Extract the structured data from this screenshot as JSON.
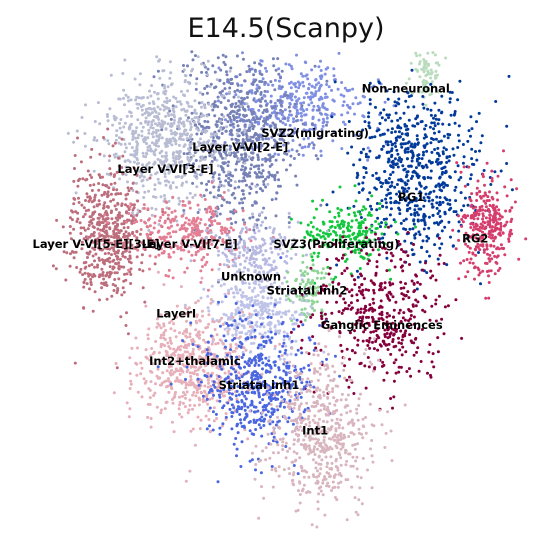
{
  "chart_data": {
    "type": "scatter",
    "title": "E14.5(Scanpy)",
    "xlabel": "",
    "ylabel": "",
    "grid": false,
    "axes_visible": false,
    "legend": "on data",
    "clusters": [
      {
        "label": "Non-neuronal",
        "color": "#b9dcbd",
        "cx": 0.8,
        "cy": 0.14,
        "sx": 0.012,
        "sy": 0.025,
        "n": 80
      },
      {
        "label": "SVZ2(migrating)",
        "color": "#7f8fe3",
        "cx": 0.56,
        "cy": 0.19,
        "sx": 0.07,
        "sy": 0.04,
        "n": 380
      },
      {
        "label": "Layer V-VI[2-E]",
        "color": "#7681b6",
        "cx": 0.45,
        "cy": 0.24,
        "sx": 0.055,
        "sy": 0.08,
        "n": 720
      },
      {
        "label": "Layer V-VI[3-E]",
        "color": "#b9bdd4",
        "cx": 0.31,
        "cy": 0.25,
        "sx": 0.06,
        "sy": 0.06,
        "n": 660
      },
      {
        "label": "RG1",
        "color": "#023a9b",
        "cx": 0.78,
        "cy": 0.31,
        "sx": 0.055,
        "sy": 0.075,
        "n": 660
      },
      {
        "label": "RG2",
        "color": "#d53d6d",
        "cx": 0.91,
        "cy": 0.41,
        "sx": 0.025,
        "sy": 0.045,
        "n": 290
      },
      {
        "label": "Layer V-VI[5-E][3-E]",
        "color": "#bd6d7c",
        "cx": 0.2,
        "cy": 0.42,
        "sx": 0.035,
        "sy": 0.065,
        "n": 540
      },
      {
        "label": "Layer V-VI[7-E]",
        "color": "#e37f94",
        "cx": 0.35,
        "cy": 0.42,
        "sx": 0.05,
        "sy": 0.035,
        "n": 300
      },
      {
        "label": "SVZ3(Proliferating)",
        "color": "#12c83d",
        "cx": 0.65,
        "cy": 0.42,
        "sx": 0.045,
        "sy": 0.03,
        "n": 210
      },
      {
        "label": "Unknown",
        "color": "#b7b9e1",
        "cx": 0.48,
        "cy": 0.46,
        "sx": 0.04,
        "sy": 0.03,
        "n": 200
      },
      {
        "label": "Striatal inh2",
        "color": "#8dd495",
        "cx": 0.58,
        "cy": 0.52,
        "sx": 0.018,
        "sy": 0.025,
        "n": 90
      },
      {
        "label": "Ganglic Eminences",
        "color": "#85003c",
        "cx": 0.71,
        "cy": 0.57,
        "sx": 0.06,
        "sy": 0.065,
        "n": 430
      },
      {
        "label": "LayerI",
        "color": "#bfc3e8",
        "cx": 0.48,
        "cy": 0.56,
        "sx": 0.045,
        "sy": 0.035,
        "n": 320
      },
      {
        "label": "Int2+thalamic",
        "color": "#e6afb9",
        "cx": 0.36,
        "cy": 0.66,
        "sx": 0.055,
        "sy": 0.05,
        "n": 560
      },
      {
        "label": "Striatal inh1",
        "color": "#4a66e0",
        "cx": 0.48,
        "cy": 0.69,
        "sx": 0.055,
        "sy": 0.06,
        "n": 500
      },
      {
        "label": "Int1",
        "color": "#d8b5bf",
        "cx": 0.6,
        "cy": 0.78,
        "sx": 0.05,
        "sy": 0.07,
        "n": 560
      }
    ],
    "labels_on_plot": [
      {
        "text": "Non-neuronal",
        "x": 0.76,
        "y": 0.16
      },
      {
        "text": "SVZ2(migrating)",
        "x": 0.59,
        "y": 0.24
      },
      {
        "text": "Layer V-VI[2-E]",
        "x": 0.45,
        "y": 0.265
      },
      {
        "text": "Layer V-VI[3-E]",
        "x": 0.31,
        "y": 0.305
      },
      {
        "text": "RG1",
        "x": 0.77,
        "y": 0.355
      },
      {
        "text": "RG2",
        "x": 0.89,
        "y": 0.43
      },
      {
        "text": "Layer V-VI[5-E][3-E]",
        "x": 0.18,
        "y": 0.44
      },
      {
        "text": "Layer V-VI[7-E]",
        "x": 0.355,
        "y": 0.44
      },
      {
        "text": "SVZ3(Proliferating)",
        "x": 0.63,
        "y": 0.44
      },
      {
        "text": "Unknown",
        "x": 0.47,
        "y": 0.498
      },
      {
        "text": "Striatal inh2",
        "x": 0.575,
        "y": 0.523
      },
      {
        "text": "LayerI",
        "x": 0.33,
        "y": 0.565
      },
      {
        "text": "Ganglic Eminences",
        "x": 0.715,
        "y": 0.585
      },
      {
        "text": "Int2+thalamic",
        "x": 0.365,
        "y": 0.65
      },
      {
        "text": "Striatal inh1",
        "x": 0.485,
        "y": 0.693
      },
      {
        "text": "Int1",
        "x": 0.59,
        "y": 0.775
      }
    ]
  }
}
